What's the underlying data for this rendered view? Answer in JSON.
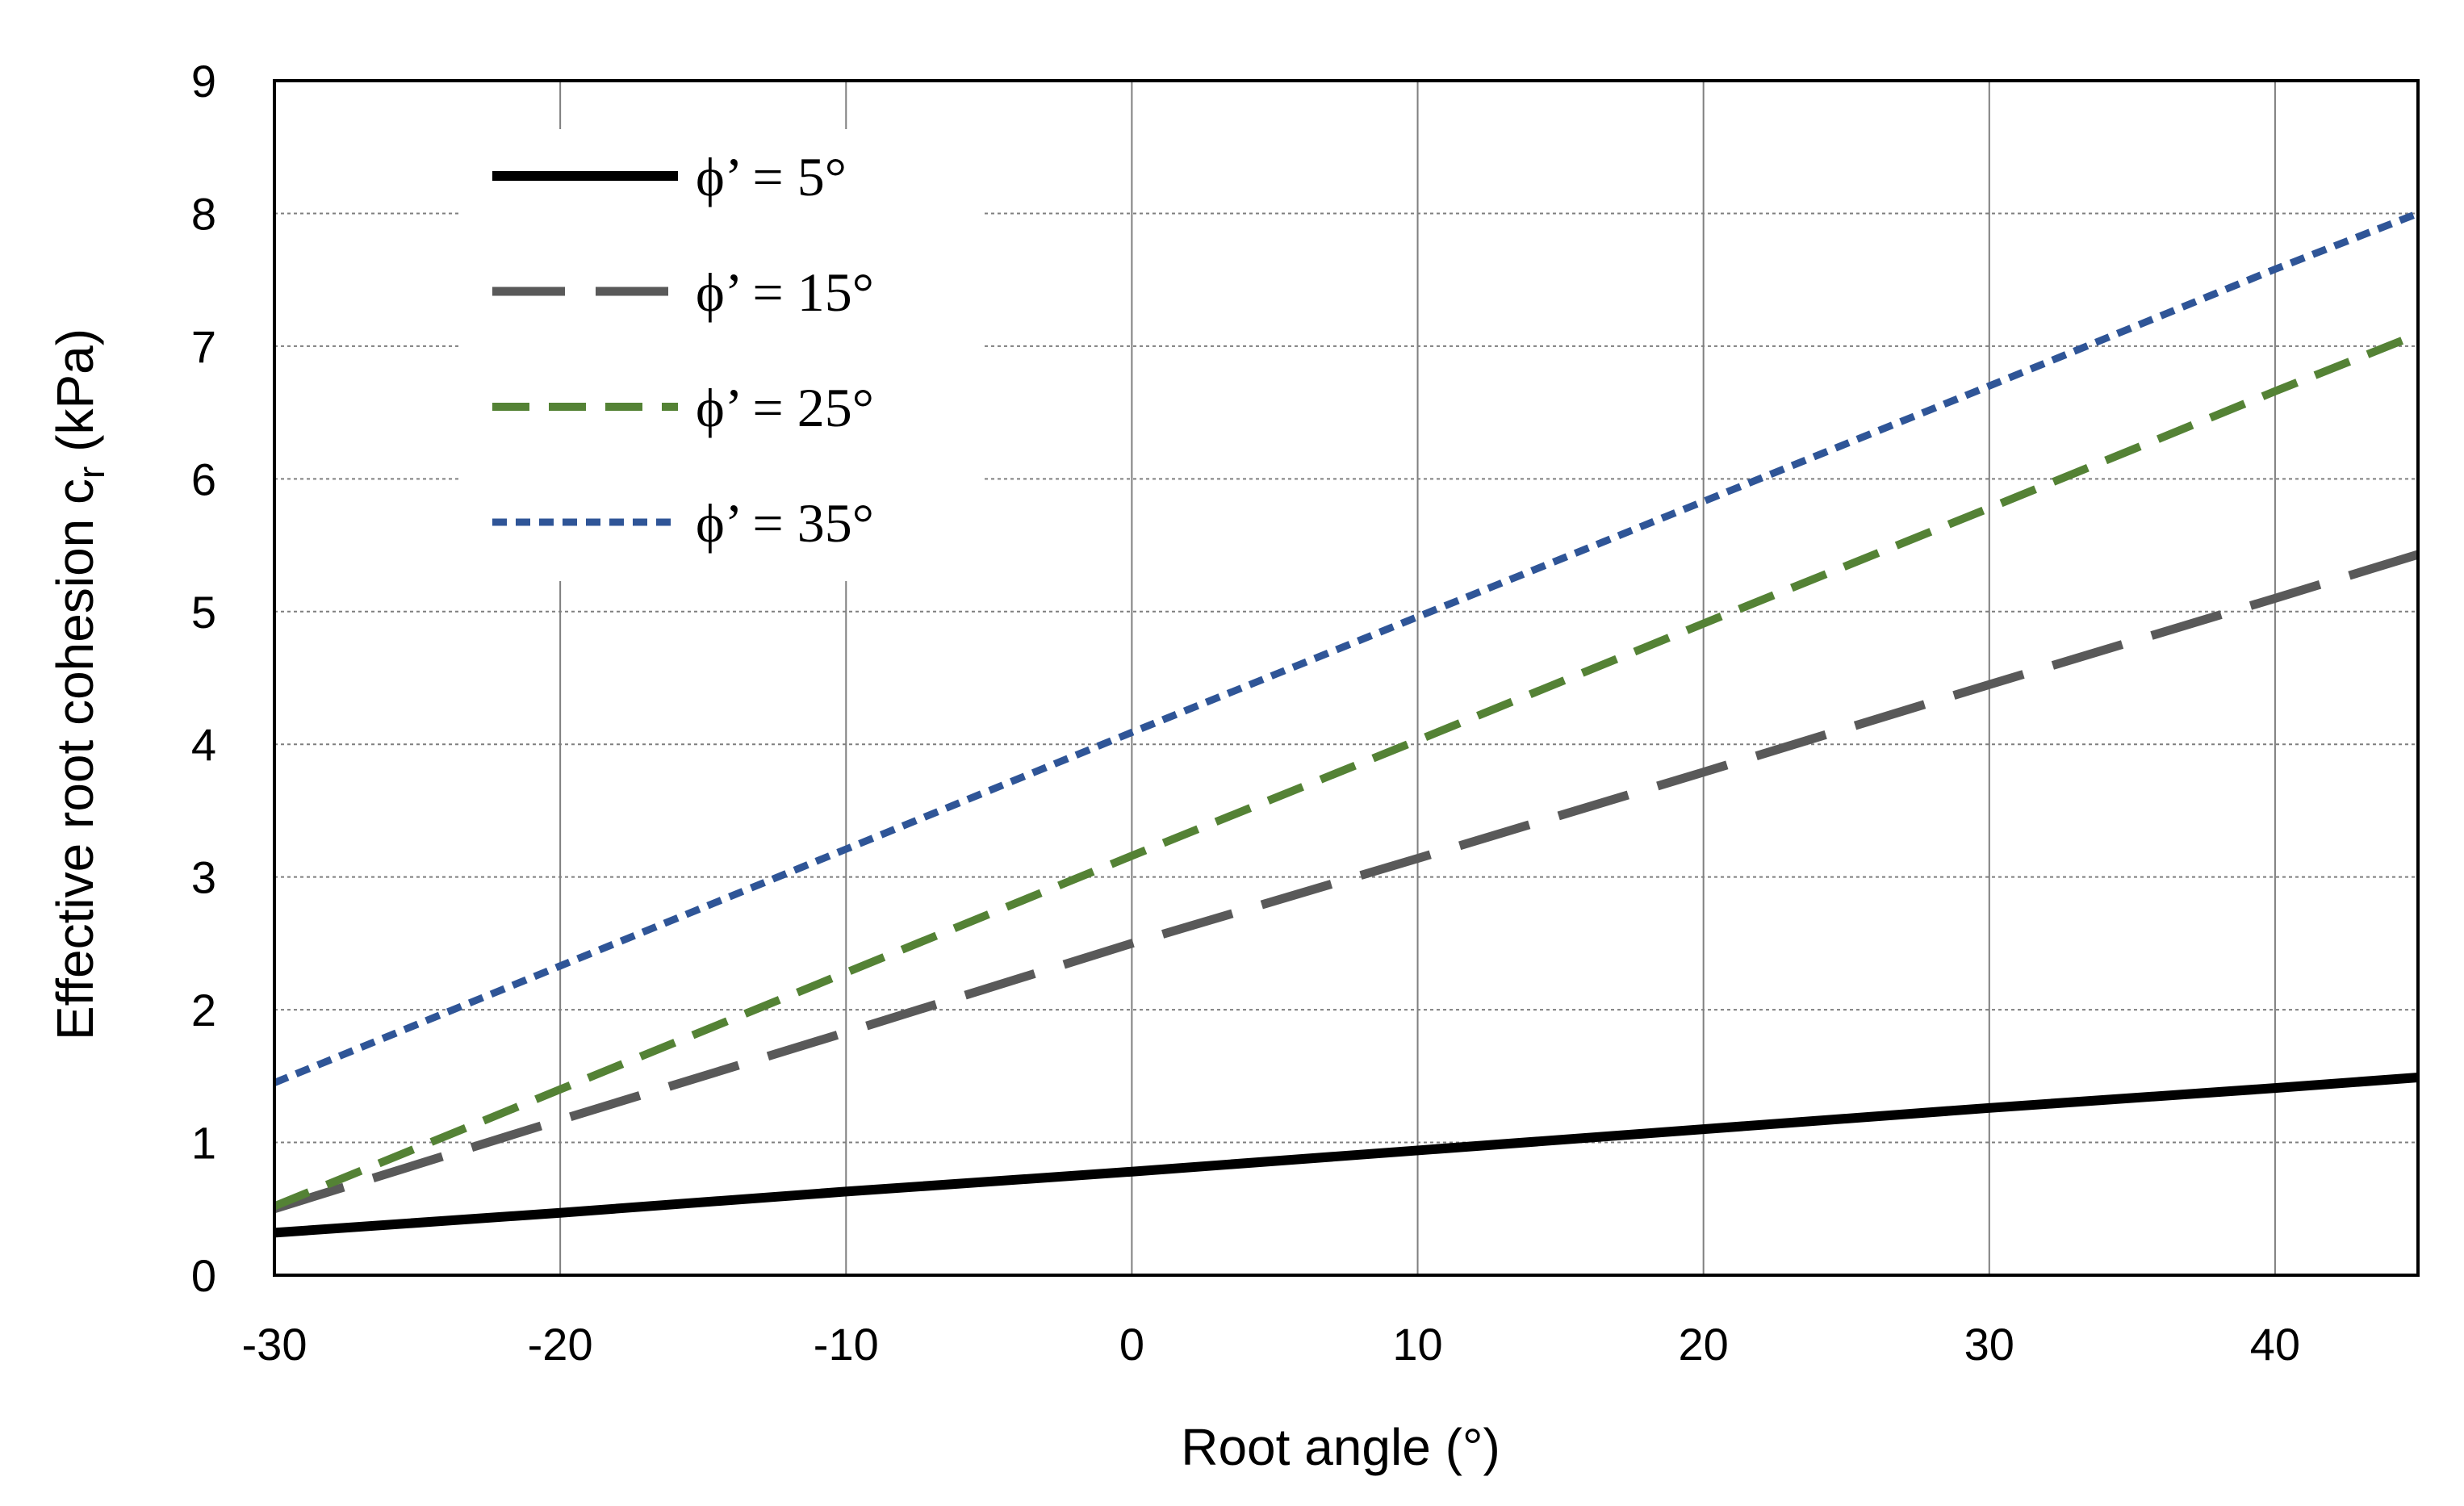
{
  "chart_data": {
    "type": "line",
    "title": "",
    "xlabel": "Root angle (°)",
    "ylabel": "Effective root cohesion c",
    "ylabel_subscript": "r",
    "ylabel_suffix": " (kPa)",
    "xlim": [
      -30,
      45
    ],
    "ylim": [
      0,
      9
    ],
    "xticks": [
      -30,
      -20,
      -10,
      0,
      10,
      20,
      30,
      40
    ],
    "yticks": [
      0,
      1,
      2,
      3,
      4,
      5,
      6,
      7,
      8,
      9
    ],
    "grid": true,
    "legend_position": "top-left",
    "series": [
      {
        "name": "ϕ’ = 5°",
        "color": "#000000",
        "dash": "solid",
        "x": [
          -30,
          -20,
          -10,
          0,
          10,
          20,
          30,
          40,
          45
        ],
        "y": [
          0.32,
          0.47,
          0.63,
          0.78,
          0.94,
          1.1,
          1.26,
          1.41,
          1.49
        ]
      },
      {
        "name": "ϕ’ = 15°",
        "color": "#595959",
        "dash": "long-dash",
        "x": [
          -30,
          -20,
          -10,
          0,
          10,
          20,
          30,
          40,
          45
        ],
        "y": [
          0.5,
          1.17,
          1.83,
          2.5,
          3.14,
          3.79,
          4.45,
          5.1,
          5.43
        ]
      },
      {
        "name": "ϕ’ = 25°",
        "color": "#548235",
        "dash": "dash",
        "x": [
          -30,
          -20,
          -10,
          0,
          10,
          20,
          30,
          40,
          45
        ],
        "y": [
          0.52,
          1.4,
          2.28,
          3.16,
          4.03,
          4.91,
          5.78,
          6.66,
          7.09
        ]
      },
      {
        "name": "ϕ’ = 35°",
        "color": "#2F5597",
        "dash": "short-dash",
        "x": [
          -30,
          -20,
          -10,
          0,
          10,
          20,
          30,
          40,
          45
        ],
        "y": [
          1.45,
          2.33,
          3.21,
          4.09,
          4.96,
          5.83,
          6.7,
          7.58,
          8.0
        ]
      }
    ]
  }
}
